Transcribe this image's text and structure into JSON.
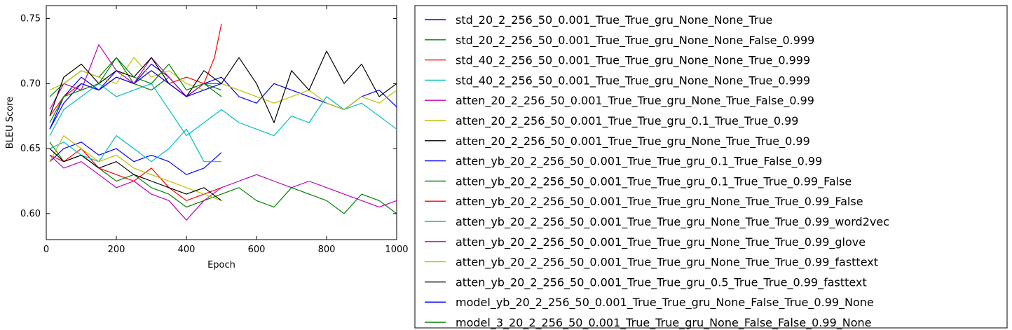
{
  "chart_data": {
    "type": "line",
    "xlabel": "Epoch",
    "ylabel": "BLEU Score",
    "xlim": [
      0,
      1000
    ],
    "ylim": [
      0.58,
      0.76
    ],
    "xticks": [
      "0",
      "200",
      "400",
      "600",
      "800",
      "1000"
    ],
    "yticks": [
      "0.60",
      "0.65",
      "0.70",
      "0.75"
    ],
    "grid": false,
    "legend_position": "right-outside",
    "series": [
      {
        "name": "std_20_2_256_50_0.001_True_True_gru_None_None_True",
        "color": "#0000ff",
        "x": [
          10,
          50,
          100,
          150,
          200,
          250,
          300,
          350,
          400,
          450,
          500,
          550,
          600,
          650,
          700,
          750,
          800,
          850,
          900,
          950,
          1000
        ],
        "y": [
          0.665,
          0.69,
          0.705,
          0.695,
          0.71,
          0.7,
          0.715,
          0.705,
          0.69,
          0.7,
          0.705,
          0.69,
          0.685,
          0.7,
          0.695,
          0.69,
          0.685,
          0.68,
          0.69,
          0.695,
          0.682
        ]
      },
      {
        "name": "std_20_2_256_50_0.001_True_True_gru_None_None_False_0.999",
        "color": "#008000",
        "x": [
          10,
          50,
          100,
          150,
          200,
          250,
          300,
          350,
          400,
          450,
          500
        ],
        "y": [
          0.69,
          0.7,
          0.71,
          0.705,
          0.72,
          0.7,
          0.695,
          0.705,
          0.69,
          0.7,
          0.695
        ]
      },
      {
        "name": "std_40_2_256_50_0.001_True_True_gru_None_None_True_0.999",
        "color": "#ff0000",
        "x": [
          10,
          50,
          100,
          150,
          200,
          250,
          300,
          350,
          400,
          450,
          480,
          500
        ],
        "y": [
          0.675,
          0.69,
          0.7,
          0.695,
          0.705,
          0.7,
          0.71,
          0.7,
          0.705,
          0.7,
          0.72,
          0.746
        ]
      },
      {
        "name": "std_40_2_256_50_0.001_True_True_gru_None_None_True_0.999",
        "color": "#00bfbf",
        "x": [
          10,
          50,
          100,
          150,
          200,
          250,
          300,
          350,
          400,
          450,
          500,
          550,
          600,
          650,
          700,
          750,
          800,
          850,
          900,
          950,
          1000
        ],
        "y": [
          0.66,
          0.68,
          0.69,
          0.7,
          0.69,
          0.695,
          0.7,
          0.68,
          0.66,
          0.67,
          0.68,
          0.67,
          0.665,
          0.66,
          0.675,
          0.67,
          0.69,
          0.68,
          0.685,
          0.675,
          0.665
        ]
      },
      {
        "name": "atten_20_2_256_50_0.001_True_True_gru_None_True_False_0.99",
        "color": "#bf00bf",
        "x": [
          10,
          50,
          100,
          150,
          200,
          250,
          300,
          350,
          400,
          450,
          500
        ],
        "y": [
          0.68,
          0.7,
          0.695,
          0.73,
          0.71,
          0.7,
          0.72,
          0.705,
          0.69,
          0.7,
          0.7
        ]
      },
      {
        "name": "atten_20_2_256_50_0.001_True_True_gru_0.1_True_True_0.99",
        "color": "#bfbf00",
        "x": [
          10,
          50,
          100,
          150,
          200,
          250,
          300,
          350,
          400,
          450,
          500,
          550,
          600,
          650,
          700,
          750,
          800,
          850,
          900,
          950,
          1000
        ],
        "y": [
          0.695,
          0.7,
          0.71,
          0.705,
          0.7,
          0.72,
          0.705,
          0.71,
          0.7,
          0.695,
          0.7,
          0.695,
          0.69,
          0.685,
          0.69,
          0.695,
          0.685,
          0.68,
          0.69,
          0.685,
          0.695
        ]
      },
      {
        "name": "atten_20_2_256_50_0.001_True_True_gru_None_True_True_0.99",
        "color": "#000000",
        "x": [
          10,
          50,
          100,
          150,
          200,
          250,
          300,
          350,
          400,
          450,
          500,
          550,
          600,
          650,
          700,
          750,
          800,
          850,
          900,
          950,
          1000
        ],
        "y": [
          0.675,
          0.705,
          0.715,
          0.7,
          0.71,
          0.705,
          0.72,
          0.7,
          0.69,
          0.71,
          0.7,
          0.72,
          0.7,
          0.67,
          0.71,
          0.695,
          0.725,
          0.7,
          0.715,
          0.69,
          0.7
        ]
      },
      {
        "name": "atten_yb_20_2_256_50_0.001_True_True_gru_0.1_True_False_0.99",
        "color": "#0000ff",
        "x": [
          10,
          50,
          100,
          150,
          200,
          250,
          300,
          350,
          400,
          450,
          500
        ],
        "y": [
          0.64,
          0.65,
          0.655,
          0.645,
          0.65,
          0.64,
          0.645,
          0.64,
          0.63,
          0.635,
          0.647
        ]
      },
      {
        "name": "atten_yb_20_2_256_50_0.001_True_True_gru_0.1_True_True_0.99_False",
        "color": "#008000",
        "x": [
          10,
          50,
          100,
          150,
          200,
          250,
          300,
          350,
          400,
          450,
          500,
          550,
          600,
          650,
          700,
          750,
          800,
          850,
          900,
          950,
          1000
        ],
        "y": [
          0.655,
          0.64,
          0.645,
          0.635,
          0.625,
          0.63,
          0.62,
          0.615,
          0.605,
          0.61,
          0.615,
          0.62,
          0.61,
          0.605,
          0.62,
          0.615,
          0.61,
          0.6,
          0.615,
          0.61,
          0.6
        ]
      },
      {
        "name": "atten_yb_20_2_256_50_0.001_True_True_gru_None_True_True_0.99_False",
        "color": "#ff0000",
        "x": [
          10,
          50,
          100,
          150,
          200,
          250,
          300,
          350,
          400,
          450,
          500
        ],
        "y": [
          0.645,
          0.64,
          0.65,
          0.635,
          0.63,
          0.625,
          0.635,
          0.62,
          0.61,
          0.615,
          0.62
        ]
      },
      {
        "name": "atten_yb_20_2_256_50_0.001_True_True_gru_None_True_True_0.99_word2vec",
        "color": "#00bfbf",
        "x": [
          10,
          50,
          100,
          150,
          200,
          250,
          300,
          350,
          400,
          450,
          500
        ],
        "y": [
          0.65,
          0.655,
          0.645,
          0.64,
          0.66,
          0.65,
          0.64,
          0.65,
          0.665,
          0.64,
          0.64
        ]
      },
      {
        "name": "atten_yb_20_2_256_50_0.001_True_True_gru_None_True_True_0.99_glove",
        "color": "#bf00bf",
        "x": [
          10,
          50,
          100,
          150,
          200,
          250,
          300,
          350,
          400,
          450,
          500,
          550,
          600,
          650,
          700,
          750,
          800,
          850,
          900,
          950,
          1000
        ],
        "y": [
          0.645,
          0.635,
          0.64,
          0.63,
          0.62,
          0.625,
          0.615,
          0.61,
          0.595,
          0.61,
          0.62,
          0.625,
          0.63,
          0.625,
          0.62,
          0.625,
          0.62,
          0.615,
          0.61,
          0.605,
          0.61
        ]
      },
      {
        "name": "atten_yb_20_2_256_50_0.001_True_True_gru_None_True_True_0.99_fasttext",
        "color": "#bfbf00",
        "x": [
          10,
          50,
          100,
          150,
          200,
          250,
          300,
          350,
          400,
          450,
          500
        ],
        "y": [
          0.64,
          0.66,
          0.65,
          0.64,
          0.645,
          0.635,
          0.63,
          0.625,
          0.62,
          0.615,
          0.61
        ]
      },
      {
        "name": "atten_yb_20_2_256_50_0.001_True_True_gru_0.5_True_True_0.99_fasttext",
        "color": "#000000",
        "x": [
          10,
          50,
          100,
          150,
          200,
          250,
          300,
          350,
          400,
          450,
          500
        ],
        "y": [
          0.65,
          0.64,
          0.645,
          0.635,
          0.64,
          0.63,
          0.625,
          0.62,
          0.615,
          0.62,
          0.61
        ]
      },
      {
        "name": "model_yb_20_2_256_50_0.001_True_True_gru_None_False_True_0.99_None",
        "color": "#0000ff",
        "x": [
          10,
          50,
          100,
          150,
          200,
          250,
          300,
          350,
          400,
          450,
          500
        ],
        "y": [
          0.665,
          0.685,
          0.7,
          0.695,
          0.705,
          0.7,
          0.71,
          0.7,
          0.69,
          0.695,
          0.7
        ]
      },
      {
        "name": "model_3_20_2_256_50_0.001_True_True_gru_None_False_False_0.99_None",
        "color": "#008000",
        "x": [
          10,
          50,
          100,
          150,
          200,
          250,
          300,
          350,
          400,
          450,
          500
        ],
        "y": [
          0.67,
          0.69,
          0.695,
          0.7,
          0.72,
          0.705,
          0.7,
          0.715,
          0.695,
          0.7,
          0.69
        ]
      }
    ]
  }
}
